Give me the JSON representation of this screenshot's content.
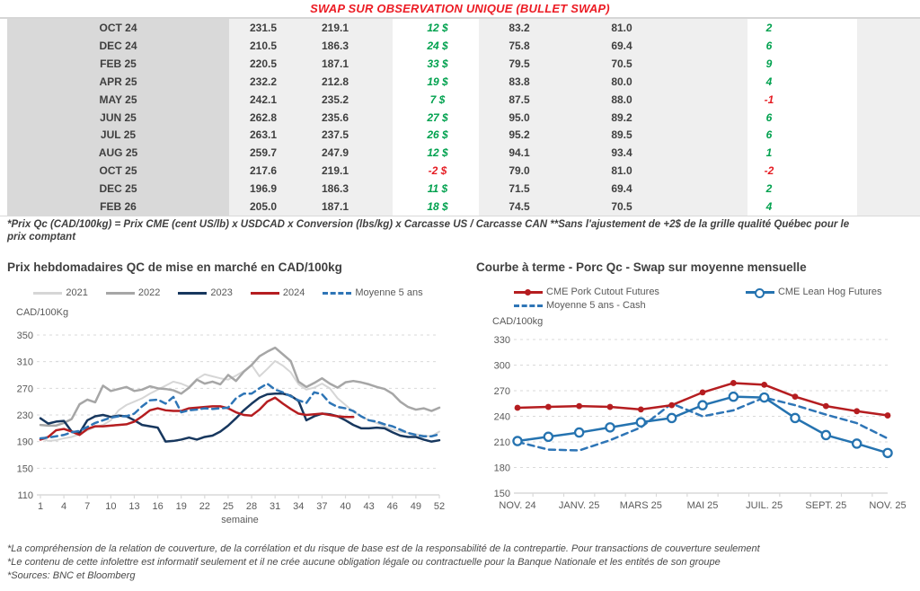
{
  "title": "SWAP SUR OBSERVATION UNIQUE (BULLET SWAP)",
  "table": {
    "rows": [
      {
        "month": "OCT 24",
        "values": [
          "231.5",
          "219.1",
          "12 $",
          "83.2",
          "81.0",
          "2"
        ]
      },
      {
        "month": "DEC 24",
        "values": [
          "210.5",
          "186.3",
          "24 $",
          "75.8",
          "69.4",
          "6"
        ]
      },
      {
        "month": "FEB 25",
        "values": [
          "220.5",
          "187.1",
          "33 $",
          "79.5",
          "70.5",
          "9"
        ]
      },
      {
        "month": "APR 25",
        "values": [
          "232.2",
          "212.8",
          "19 $",
          "83.8",
          "80.0",
          "4"
        ]
      },
      {
        "month": "MAY 25",
        "values": [
          "242.1",
          "235.2",
          "7 $",
          "87.5",
          "88.0",
          "-1"
        ]
      },
      {
        "month": "JUN 25",
        "values": [
          "262.8",
          "235.6",
          "27 $",
          "95.0",
          "89.2",
          "6"
        ]
      },
      {
        "month": "JUL 25",
        "values": [
          "263.1",
          "237.5",
          "26 $",
          "95.2",
          "89.5",
          "6"
        ]
      },
      {
        "month": "AUG 25",
        "values": [
          "259.7",
          "247.9",
          "12 $",
          "94.1",
          "93.4",
          "1"
        ]
      },
      {
        "month": "OCT 25",
        "values": [
          "217.6",
          "219.1",
          "-2 $",
          "79.0",
          "81.0",
          "-2"
        ]
      },
      {
        "month": "DEC 25",
        "values": [
          "196.9",
          "186.3",
          "11 $",
          "71.5",
          "69.4",
          "2"
        ]
      },
      {
        "month": "FEB 26",
        "values": [
          "205.0",
          "187.1",
          "18 $",
          "74.5",
          "70.5",
          "4"
        ]
      }
    ]
  },
  "footnote": "*Prix Qc (CAD/100kg) = Prix CME (cent US/lb) x USDCAD x Conversion (lbs/kg) x Carcasse US / Carcasse CAN **Sans l'ajustement de +2$ de la grille qualité Québec pour le prix comptant",
  "colors": {
    "title_red": "#ec1c24",
    "positive_green": "#00a14e",
    "negative_red": "#e51c23",
    "gridline": "#d9d9d9"
  },
  "chart_data": [
    {
      "type": "line",
      "title": "Prix hebdomadaires QC de mise en marché en CAD/100kg",
      "y_axis_label": "CAD/100Kg",
      "xlabel": "semaine",
      "ylim": [
        110,
        350
      ],
      "yticks": [
        110,
        150,
        190,
        230,
        270,
        310,
        350
      ],
      "xticks": [
        1,
        4,
        7,
        10,
        13,
        16,
        19,
        22,
        25,
        28,
        31,
        34,
        37,
        40,
        43,
        46,
        49,
        52
      ],
      "x_count": 52,
      "grid": "dashed horizontal",
      "legend_position": "top",
      "series": [
        {
          "name": "2021",
          "color": "#d6d6d6",
          "dash": null,
          "width": 2,
          "values": [
            195,
            191,
            192,
            195,
            197,
            201,
            207,
            212,
            215,
            222,
            237,
            245,
            250,
            255,
            262,
            268,
            274,
            280,
            277,
            272,
            284,
            291,
            288,
            285,
            283,
            289,
            296,
            305,
            288,
            299,
            311,
            304,
            294,
            276,
            268,
            271,
            277,
            270,
            255,
            245,
            235,
            228,
            222,
            218,
            213,
            208,
            205,
            203,
            201,
            199,
            198,
            205
          ]
        },
        {
          "name": "2022",
          "color": "#a6a6a6",
          "dash": null,
          "width": 2.5,
          "values": [
            215,
            214,
            214,
            218,
            224,
            246,
            253,
            249,
            274,
            266,
            269,
            272,
            266,
            268,
            273,
            270,
            269,
            267,
            262,
            271,
            283,
            277,
            280,
            276,
            290,
            281,
            295,
            305,
            318,
            325,
            331,
            321,
            311,
            280,
            272,
            278,
            285,
            277,
            271,
            279,
            281,
            279,
            276,
            272,
            269,
            262,
            250,
            242,
            238,
            240,
            236,
            241
          ]
        },
        {
          "name": "2023",
          "color": "#17375e",
          "dash": null,
          "width": 2.5,
          "values": [
            225,
            217,
            220,
            221,
            205,
            203,
            222,
            228,
            230,
            227,
            229,
            228,
            222,
            215,
            213,
            211,
            190,
            191,
            193,
            196,
            193,
            197,
            199,
            205,
            214,
            225,
            237,
            247,
            256,
            261,
            262,
            262,
            259,
            251,
            222,
            228,
            232,
            231,
            228,
            222,
            215,
            210,
            210,
            211,
            210,
            204,
            199,
            197,
            197,
            193,
            190,
            192
          ]
        },
        {
          "name": "2024",
          "color": "#b51d20",
          "dash": null,
          "width": 2.5,
          "values": [
            193,
            197,
            207,
            209,
            205,
            200,
            209,
            213,
            213,
            214,
            215,
            216,
            220,
            228,
            237,
            240,
            237,
            236,
            236,
            240,
            241,
            242,
            243,
            243,
            240,
            234,
            230,
            229,
            238,
            250,
            256,
            247,
            239,
            232,
            230,
            231,
            232,
            230,
            228,
            227,
            227
          ]
        },
        {
          "name": "Moyenne 5 ans",
          "color": "#2e75b6",
          "dash": "7 5",
          "width": 2.5,
          "values": [
            195,
            196,
            198,
            200,
            204,
            206,
            212,
            218,
            222,
            226,
            228,
            228,
            232,
            243,
            252,
            253,
            247,
            257,
            234,
            237,
            238,
            240,
            239,
            240,
            241,
            255,
            262,
            262,
            270,
            277,
            268,
            264,
            258,
            252,
            248,
            264,
            261,
            248,
            242,
            240,
            236,
            228,
            222,
            220,
            216,
            213,
            208,
            203,
            200,
            198,
            198,
            201
          ]
        }
      ]
    },
    {
      "type": "line",
      "title": "Courbe à terme - Porc Qc - Swap sur moyenne mensuelle",
      "y_axis_label": "CAD/100kg",
      "ylim": [
        150,
        330
      ],
      "yticks": [
        150,
        180,
        210,
        240,
        270,
        300,
        330
      ],
      "x_count": 13,
      "x_labels": [
        "NOV. 24",
        "JANV. 25",
        "MARS 25",
        "MAI 25",
        "JUIL. 25",
        "SEPT. 25",
        "NOV. 25"
      ],
      "x_label_indices": [
        0,
        2,
        4,
        6,
        8,
        10,
        12
      ],
      "grid": "dashed horizontal",
      "legend_position": "top",
      "series": [
        {
          "name": "CME Pork Cutout Futures",
          "color": "#b51d20",
          "dash": null,
          "width": 2.5,
          "marker": "filled",
          "values": [
            250,
            251,
            252,
            251,
            248,
            253,
            268,
            279,
            277,
            263,
            252,
            246,
            241
          ]
        },
        {
          "name": "CME Lean Hog Futures",
          "color": "#2573b0",
          "dash": null,
          "width": 2.5,
          "marker": "open",
          "values": [
            211,
            216,
            221,
            227,
            233,
            238,
            253,
            263,
            262,
            238,
            218,
            208,
            197
          ]
        },
        {
          "name": "Moyenne 5 ans - Cash",
          "color": "#2e75b6",
          "dash": "7 5",
          "width": 2.5,
          "marker": null,
          "values": [
            210,
            201,
            200,
            212,
            227,
            255,
            240,
            247,
            262,
            253,
            242,
            232,
            214
          ]
        }
      ]
    }
  ],
  "legend2": {
    "row1": [
      "CME Pork Cutout Futures",
      "CME Lean Hog Futures"
    ],
    "row2": [
      "Moyenne 5 ans - Cash"
    ]
  },
  "footer": {
    "lines": [
      "*La compréhension de la relation de couverture, de la corrélation et du risque de base est de la responsabilité de la contrepartie. Pour transactions de couverture seulement",
      "*Le contenu de cette infolettre est informatif seulement et il ne crée aucune obligation légale ou contractuelle pour la Banque Nationale et les entités de son groupe",
      "*Sources: BNC et Bloomberg"
    ]
  }
}
